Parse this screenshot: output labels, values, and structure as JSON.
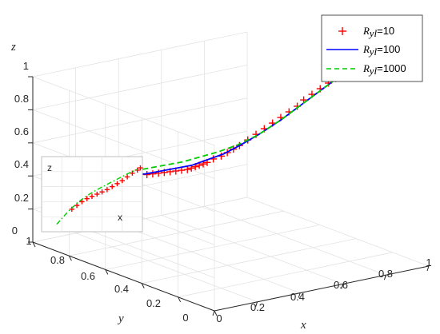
{
  "chart_data": [
    {
      "type": "line",
      "projection": "3d",
      "xlabel": "x",
      "ylabel": "y",
      "zlabel": "z",
      "xlim": [
        0,
        1
      ],
      "ylim": [
        0,
        1
      ],
      "zlim": [
        0,
        1
      ],
      "x_ticks": [
        "0",
        "0.2",
        "0.4",
        "0.6",
        "0.8",
        "1"
      ],
      "y_ticks": [
        "0",
        "0.2",
        "0.4",
        "0.6",
        "0.8",
        "1"
      ],
      "z_ticks": [
        "0",
        "0.2",
        "0.4",
        "0.6",
        "0.8",
        "1"
      ],
      "grid": true,
      "legend_position": "top-right",
      "series": [
        {
          "legend_symbol": "R",
          "legend_subscript": "yl",
          "legend_value": "=10",
          "marker": "+",
          "color": "#ff0000",
          "points": [
            [
              0.98,
              0.45,
              0.98
            ],
            [
              0.955,
              0.46,
              0.955
            ],
            [
              0.93,
              0.47,
              0.93
            ],
            [
              0.9,
              0.48,
              0.9
            ],
            [
              0.87,
              0.49,
              0.87
            ],
            [
              0.84,
              0.5,
              0.84
            ],
            [
              0.81,
              0.5,
              0.81
            ],
            [
              0.78,
              0.51,
              0.78
            ],
            [
              0.75,
              0.52,
              0.75
            ],
            [
              0.72,
              0.53,
              0.72
            ],
            [
              0.69,
              0.54,
              0.69
            ],
            [
              0.66,
              0.55,
              0.66
            ],
            [
              0.63,
              0.56,
              0.63
            ],
            [
              0.6,
              0.57,
              0.6
            ],
            [
              0.58,
              0.58,
              0.58
            ],
            [
              0.56,
              0.59,
              0.56
            ],
            [
              0.54,
              0.6,
              0.54
            ],
            [
              0.52,
              0.62,
              0.52
            ],
            [
              0.5,
              0.63,
              0.5
            ],
            [
              0.49,
              0.64,
              0.49
            ],
            [
              0.48,
              0.65,
              0.48
            ],
            [
              0.47,
              0.66,
              0.47
            ],
            [
              0.46,
              0.67,
              0.46
            ],
            [
              0.45,
              0.68,
              0.45
            ],
            [
              0.44,
              0.7,
              0.44
            ],
            [
              0.43,
              0.72,
              0.43
            ],
            [
              0.42,
              0.74,
              0.42
            ],
            [
              0.41,
              0.76,
              0.41
            ],
            [
              0.4,
              0.78,
              0.4
            ],
            [
              0.39,
              0.8,
              0.39
            ],
            [
              0.38,
              0.82,
              0.38
            ],
            [
              0.37,
              0.85,
              0.37
            ],
            [
              0.36,
              0.88,
              0.36
            ]
          ]
        },
        {
          "legend_symbol": "R",
          "legend_subscript": "yl",
          "legend_value": "=100",
          "style": "solid",
          "color": "#0000ff",
          "points": [
            [
              0.98,
              0.45,
              0.98
            ],
            [
              0.9,
              0.47,
              0.9
            ],
            [
              0.82,
              0.49,
              0.82
            ],
            [
              0.74,
              0.51,
              0.74
            ],
            [
              0.66,
              0.54,
              0.66
            ],
            [
              0.6,
              0.57,
              0.6
            ],
            [
              0.55,
              0.6,
              0.55
            ],
            [
              0.51,
              0.64,
              0.51
            ],
            [
              0.47,
              0.68,
              0.47
            ],
            [
              0.44,
              0.73,
              0.44
            ],
            [
              0.41,
              0.78,
              0.41
            ],
            [
              0.38,
              0.83,
              0.38
            ],
            [
              0.36,
              0.88,
              0.36
            ]
          ]
        },
        {
          "legend_symbol": "R",
          "legend_subscript": "yl",
          "legend_value": "=1000",
          "style": "dashed",
          "color": "#00cc00",
          "points": [
            [
              0.98,
              0.45,
              0.98
            ],
            [
              0.9,
              0.47,
              0.9
            ],
            [
              0.82,
              0.49,
              0.82
            ],
            [
              0.74,
              0.51,
              0.74
            ],
            [
              0.66,
              0.54,
              0.66
            ],
            [
              0.6,
              0.58,
              0.6
            ],
            [
              0.55,
              0.63,
              0.55
            ],
            [
              0.51,
              0.68,
              0.51
            ],
            [
              0.47,
              0.73,
              0.47
            ],
            [
              0.44,
              0.78,
              0.44
            ],
            [
              0.41,
              0.83,
              0.41
            ],
            [
              0.38,
              0.88,
              0.38
            ],
            [
              0.36,
              0.92,
              0.36
            ]
          ]
        }
      ]
    },
    {
      "type": "line",
      "inset": true,
      "xlabel": "x",
      "zlabel": "z",
      "series": [
        {
          "marker": "+",
          "color": "#ff0000",
          "points": [
            [
              0.3,
              0.3
            ],
            [
              0.35,
              0.35
            ],
            [
              0.4,
              0.4
            ],
            [
              0.45,
              0.44
            ],
            [
              0.5,
              0.47
            ],
            [
              0.55,
              0.5
            ],
            [
              0.6,
              0.53
            ],
            [
              0.65,
              0.56
            ],
            [
              0.7,
              0.6
            ],
            [
              0.75,
              0.64
            ],
            [
              0.8,
              0.68
            ],
            [
              0.85,
              0.73
            ],
            [
              0.9,
              0.78
            ],
            [
              0.95,
              0.82
            ],
            [
              0.98,
              0.85
            ]
          ]
        },
        {
          "style": "dash-dot",
          "color": "#00cc00",
          "points": [
            [
              0.15,
              0.1
            ],
            [
              0.25,
              0.25
            ],
            [
              0.35,
              0.38
            ],
            [
              0.45,
              0.48
            ],
            [
              0.55,
              0.56
            ],
            [
              0.65,
              0.63
            ],
            [
              0.75,
              0.7
            ],
            [
              0.85,
              0.77
            ],
            [
              0.95,
              0.83
            ]
          ]
        }
      ]
    }
  ]
}
